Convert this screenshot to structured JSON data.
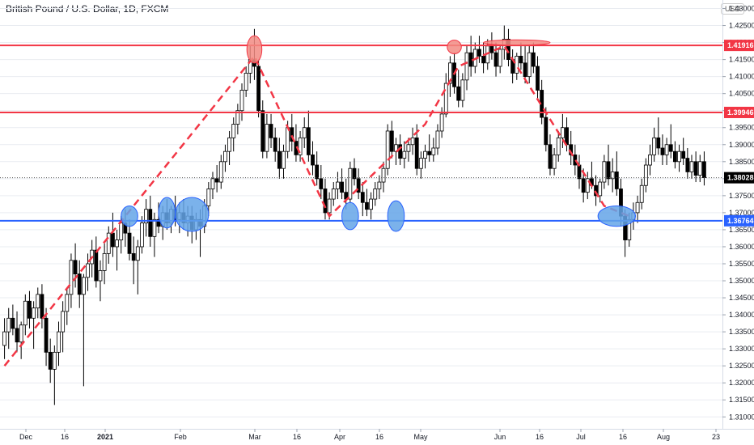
{
  "header": {
    "title": "British Pound / U.S. Dollar, 1D, FXCM",
    "currency": "USD"
  },
  "colors": {
    "up": "#ffffff",
    "down": "#000000",
    "candle_outline": "#000000",
    "resistance": "#f23645",
    "support": "#2962ff",
    "dashed_path": "#f23645",
    "highlight_red_fill": "#f28b82",
    "highlight_blue_fill": "#64a5e8",
    "grid": "#e9ecf1",
    "price_tag_dark": "#000000"
  },
  "chart_data": {
    "type": "candlestick",
    "title": "British Pound / U.S. Dollar, 1D, FXCM",
    "ylim": [
      1.3065,
      1.4325
    ],
    "y_ticks": [
      "1.43000",
      "1.42500",
      "1.42000",
      "1.41500",
      "1.41000",
      "1.40500",
      "1.40000",
      "1.39500",
      "1.39000",
      "1.38500",
      "1.38000",
      "1.37500",
      "1.37000",
      "1.36500",
      "1.36000",
      "1.35500",
      "1.35000",
      "1.34500",
      "1.34000",
      "1.33500",
      "1.33000",
      "1.32500",
      "1.32000",
      "1.31500",
      "1.31000"
    ],
    "x_labels": [
      "Dec",
      "16",
      "2021",
      "Feb",
      "Mar",
      "16",
      "Apr",
      "16",
      "May",
      "Jun",
      "16",
      "Jul",
      "16",
      "Aug",
      "23"
    ],
    "horizontal_levels": [
      {
        "value": 1.41916,
        "label": "1.41916",
        "role": "resistance"
      },
      {
        "value": 1.39946,
        "label": "1.39946",
        "role": "resistance"
      },
      {
        "value": 1.36764,
        "label": "1.36764",
        "role": "support"
      }
    ],
    "current_price": {
      "value": 1.38028,
      "label": "1.38028"
    },
    "candles": [
      {
        "o": 1.331,
        "h": 1.339,
        "l": 1.327,
        "c": 1.335
      },
      {
        "o": 1.335,
        "h": 1.342,
        "l": 1.33,
        "c": 1.339
      },
      {
        "o": 1.339,
        "h": 1.343,
        "l": 1.334,
        "c": 1.336
      },
      {
        "o": 1.336,
        "h": 1.341,
        "l": 1.329,
        "c": 1.332
      },
      {
        "o": 1.332,
        "h": 1.338,
        "l": 1.327,
        "c": 1.337
      },
      {
        "o": 1.337,
        "h": 1.346,
        "l": 1.334,
        "c": 1.344
      },
      {
        "o": 1.344,
        "h": 1.347,
        "l": 1.336,
        "c": 1.339
      },
      {
        "o": 1.339,
        "h": 1.344,
        "l": 1.33,
        "c": 1.342
      },
      {
        "o": 1.342,
        "h": 1.348,
        "l": 1.339,
        "c": 1.346
      },
      {
        "o": 1.346,
        "h": 1.349,
        "l": 1.336,
        "c": 1.339
      },
      {
        "o": 1.339,
        "h": 1.342,
        "l": 1.325,
        "c": 1.329
      },
      {
        "o": 1.329,
        "h": 1.333,
        "l": 1.32,
        "c": 1.324
      },
      {
        "o": 1.324,
        "h": 1.331,
        "l": 1.3135,
        "c": 1.329
      },
      {
        "o": 1.329,
        "h": 1.338,
        "l": 1.325,
        "c": 1.335
      },
      {
        "o": 1.335,
        "h": 1.344,
        "l": 1.329,
        "c": 1.341
      },
      {
        "o": 1.341,
        "h": 1.348,
        "l": 1.337,
        "c": 1.346
      },
      {
        "o": 1.346,
        "h": 1.358,
        "l": 1.342,
        "c": 1.356
      },
      {
        "o": 1.356,
        "h": 1.361,
        "l": 1.348,
        "c": 1.352
      },
      {
        "o": 1.352,
        "h": 1.356,
        "l": 1.342,
        "c": 1.346
      },
      {
        "o": 1.346,
        "h": 1.352,
        "l": 1.319,
        "c": 1.351
      },
      {
        "o": 1.351,
        "h": 1.358,
        "l": 1.347,
        "c": 1.355
      },
      {
        "o": 1.355,
        "h": 1.362,
        "l": 1.351,
        "c": 1.359
      },
      {
        "o": 1.359,
        "h": 1.363,
        "l": 1.348,
        "c": 1.35
      },
      {
        "o": 1.35,
        "h": 1.356,
        "l": 1.344,
        "c": 1.353
      },
      {
        "o": 1.353,
        "h": 1.361,
        "l": 1.349,
        "c": 1.358
      },
      {
        "o": 1.358,
        "h": 1.366,
        "l": 1.355,
        "c": 1.364
      },
      {
        "o": 1.364,
        "h": 1.37,
        "l": 1.357,
        "c": 1.36
      },
      {
        "o": 1.36,
        "h": 1.365,
        "l": 1.353,
        "c": 1.362
      },
      {
        "o": 1.362,
        "h": 1.369,
        "l": 1.358,
        "c": 1.367
      },
      {
        "o": 1.367,
        "h": 1.371,
        "l": 1.36,
        "c": 1.364
      },
      {
        "o": 1.364,
        "h": 1.368,
        "l": 1.356,
        "c": 1.358
      },
      {
        "o": 1.358,
        "h": 1.363,
        "l": 1.349,
        "c": 1.356
      },
      {
        "o": 1.356,
        "h": 1.362,
        "l": 1.346,
        "c": 1.36
      },
      {
        "o": 1.36,
        "h": 1.369,
        "l": 1.358,
        "c": 1.367
      },
      {
        "o": 1.367,
        "h": 1.374,
        "l": 1.363,
        "c": 1.371
      },
      {
        "o": 1.371,
        "h": 1.375,
        "l": 1.36,
        "c": 1.363
      },
      {
        "o": 1.363,
        "h": 1.37,
        "l": 1.357,
        "c": 1.368
      },
      {
        "o": 1.368,
        "h": 1.373,
        "l": 1.364,
        "c": 1.366
      },
      {
        "o": 1.366,
        "h": 1.372,
        "l": 1.362,
        "c": 1.37
      },
      {
        "o": 1.37,
        "h": 1.374,
        "l": 1.365,
        "c": 1.367
      },
      {
        "o": 1.367,
        "h": 1.372,
        "l": 1.364,
        "c": 1.371
      },
      {
        "o": 1.371,
        "h": 1.375,
        "l": 1.366,
        "c": 1.368
      },
      {
        "o": 1.368,
        "h": 1.373,
        "l": 1.364,
        "c": 1.37
      },
      {
        "o": 1.37,
        "h": 1.374,
        "l": 1.365,
        "c": 1.367
      },
      {
        "o": 1.367,
        "h": 1.372,
        "l": 1.363,
        "c": 1.369
      },
      {
        "o": 1.369,
        "h": 1.372,
        "l": 1.361,
        "c": 1.365
      },
      {
        "o": 1.365,
        "h": 1.37,
        "l": 1.362,
        "c": 1.368
      },
      {
        "o": 1.368,
        "h": 1.371,
        "l": 1.357,
        "c": 1.366
      },
      {
        "o": 1.366,
        "h": 1.374,
        "l": 1.364,
        "c": 1.372
      },
      {
        "o": 1.372,
        "h": 1.379,
        "l": 1.369,
        "c": 1.377
      },
      {
        "o": 1.377,
        "h": 1.382,
        "l": 1.374,
        "c": 1.38
      },
      {
        "o": 1.38,
        "h": 1.384,
        "l": 1.376,
        "c": 1.379
      },
      {
        "o": 1.379,
        "h": 1.387,
        "l": 1.377,
        "c": 1.385
      },
      {
        "o": 1.385,
        "h": 1.39,
        "l": 1.382,
        "c": 1.388
      },
      {
        "o": 1.388,
        "h": 1.394,
        "l": 1.384,
        "c": 1.392
      },
      {
        "o": 1.392,
        "h": 1.398,
        "l": 1.388,
        "c": 1.396
      },
      {
        "o": 1.396,
        "h": 1.402,
        "l": 1.393,
        "c": 1.4
      },
      {
        "o": 1.4,
        "h": 1.408,
        "l": 1.397,
        "c": 1.406
      },
      {
        "o": 1.406,
        "h": 1.413,
        "l": 1.404,
        "c": 1.411
      },
      {
        "o": 1.411,
        "h": 1.419,
        "l": 1.408,
        "c": 1.415
      },
      {
        "o": 1.415,
        "h": 1.424,
        "l": 1.409,
        "c": 1.413
      },
      {
        "o": 1.413,
        "h": 1.415,
        "l": 1.398,
        "c": 1.4
      },
      {
        "o": 1.4,
        "h": 1.403,
        "l": 1.386,
        "c": 1.388
      },
      {
        "o": 1.388,
        "h": 1.399,
        "l": 1.386,
        "c": 1.396
      },
      {
        "o": 1.396,
        "h": 1.399,
        "l": 1.389,
        "c": 1.392
      },
      {
        "o": 1.392,
        "h": 1.395,
        "l": 1.385,
        "c": 1.388
      },
      {
        "o": 1.388,
        "h": 1.392,
        "l": 1.38,
        "c": 1.383
      },
      {
        "o": 1.383,
        "h": 1.39,
        "l": 1.38,
        "c": 1.388
      },
      {
        "o": 1.388,
        "h": 1.397,
        "l": 1.386,
        "c": 1.395
      },
      {
        "o": 1.395,
        "h": 1.399,
        "l": 1.388,
        "c": 1.391
      },
      {
        "o": 1.391,
        "h": 1.396,
        "l": 1.385,
        "c": 1.387
      },
      {
        "o": 1.387,
        "h": 1.394,
        "l": 1.385,
        "c": 1.392
      },
      {
        "o": 1.392,
        "h": 1.398,
        "l": 1.389,
        "c": 1.395
      },
      {
        "o": 1.395,
        "h": 1.4,
        "l": 1.385,
        "c": 1.387
      },
      {
        "o": 1.387,
        "h": 1.391,
        "l": 1.381,
        "c": 1.384
      },
      {
        "o": 1.384,
        "h": 1.388,
        "l": 1.378,
        "c": 1.38
      },
      {
        "o": 1.38,
        "h": 1.384,
        "l": 1.374,
        "c": 1.377
      },
      {
        "o": 1.377,
        "h": 1.38,
        "l": 1.368,
        "c": 1.37
      },
      {
        "o": 1.37,
        "h": 1.376,
        "l": 1.368,
        "c": 1.374
      },
      {
        "o": 1.374,
        "h": 1.379,
        "l": 1.372,
        "c": 1.377
      },
      {
        "o": 1.377,
        "h": 1.382,
        "l": 1.374,
        "c": 1.379
      },
      {
        "o": 1.379,
        "h": 1.383,
        "l": 1.374,
        "c": 1.376
      },
      {
        "o": 1.376,
        "h": 1.38,
        "l": 1.371,
        "c": 1.374
      },
      {
        "o": 1.374,
        "h": 1.385,
        "l": 1.373,
        "c": 1.383
      },
      {
        "o": 1.383,
        "h": 1.386,
        "l": 1.378,
        "c": 1.38
      },
      {
        "o": 1.38,
        "h": 1.383,
        "l": 1.374,
        "c": 1.376
      },
      {
        "o": 1.376,
        "h": 1.379,
        "l": 1.369,
        "c": 1.373
      },
      {
        "o": 1.373,
        "h": 1.377,
        "l": 1.369,
        "c": 1.371
      },
      {
        "o": 1.371,
        "h": 1.376,
        "l": 1.368,
        "c": 1.374
      },
      {
        "o": 1.374,
        "h": 1.379,
        "l": 1.372,
        "c": 1.377
      },
      {
        "o": 1.377,
        "h": 1.381,
        "l": 1.374,
        "c": 1.379
      },
      {
        "o": 1.379,
        "h": 1.385,
        "l": 1.376,
        "c": 1.383
      },
      {
        "o": 1.383,
        "h": 1.396,
        "l": 1.381,
        "c": 1.394
      },
      {
        "o": 1.394,
        "h": 1.397,
        "l": 1.386,
        "c": 1.388
      },
      {
        "o": 1.388,
        "h": 1.392,
        "l": 1.384,
        "c": 1.39
      },
      {
        "o": 1.39,
        "h": 1.393,
        "l": 1.384,
        "c": 1.386
      },
      {
        "o": 1.386,
        "h": 1.391,
        "l": 1.383,
        "c": 1.388
      },
      {
        "o": 1.388,
        "h": 1.392,
        "l": 1.385,
        "c": 1.39
      },
      {
        "o": 1.39,
        "h": 1.395,
        "l": 1.387,
        "c": 1.392
      },
      {
        "o": 1.392,
        "h": 1.396,
        "l": 1.381,
        "c": 1.383
      },
      {
        "o": 1.383,
        "h": 1.388,
        "l": 1.38,
        "c": 1.386
      },
      {
        "o": 1.386,
        "h": 1.39,
        "l": 1.383,
        "c": 1.388
      },
      {
        "o": 1.388,
        "h": 1.393,
        "l": 1.385,
        "c": 1.387
      },
      {
        "o": 1.387,
        "h": 1.392,
        "l": 1.385,
        "c": 1.389
      },
      {
        "o": 1.389,
        "h": 1.396,
        "l": 1.387,
        "c": 1.394
      },
      {
        "o": 1.394,
        "h": 1.401,
        "l": 1.392,
        "c": 1.399
      },
      {
        "o": 1.399,
        "h": 1.411,
        "l": 1.398,
        "c": 1.408
      },
      {
        "o": 1.408,
        "h": 1.416,
        "l": 1.404,
        "c": 1.414
      },
      {
        "o": 1.414,
        "h": 1.417,
        "l": 1.405,
        "c": 1.407
      },
      {
        "o": 1.407,
        "h": 1.412,
        "l": 1.401,
        "c": 1.403
      },
      {
        "o": 1.403,
        "h": 1.411,
        "l": 1.401,
        "c": 1.409
      },
      {
        "o": 1.409,
        "h": 1.419,
        "l": 1.406,
        "c": 1.417
      },
      {
        "o": 1.417,
        "h": 1.422,
        "l": 1.41,
        "c": 1.413
      },
      {
        "o": 1.413,
        "h": 1.42,
        "l": 1.411,
        "c": 1.418
      },
      {
        "o": 1.418,
        "h": 1.422,
        "l": 1.414,
        "c": 1.416
      },
      {
        "o": 1.416,
        "h": 1.42,
        "l": 1.411,
        "c": 1.414
      },
      {
        "o": 1.414,
        "h": 1.421,
        "l": 1.412,
        "c": 1.419
      },
      {
        "o": 1.419,
        "h": 1.423,
        "l": 1.415,
        "c": 1.417
      },
      {
        "o": 1.417,
        "h": 1.42,
        "l": 1.41,
        "c": 1.413
      },
      {
        "o": 1.413,
        "h": 1.419,
        "l": 1.411,
        "c": 1.418
      },
      {
        "o": 1.418,
        "h": 1.425,
        "l": 1.415,
        "c": 1.421
      },
      {
        "o": 1.421,
        "h": 1.424,
        "l": 1.413,
        "c": 1.415
      },
      {
        "o": 1.415,
        "h": 1.418,
        "l": 1.408,
        "c": 1.411
      },
      {
        "o": 1.411,
        "h": 1.417,
        "l": 1.409,
        "c": 1.416
      },
      {
        "o": 1.416,
        "h": 1.42,
        "l": 1.412,
        "c": 1.414
      },
      {
        "o": 1.414,
        "h": 1.419,
        "l": 1.408,
        "c": 1.41
      },
      {
        "o": 1.41,
        "h": 1.419,
        "l": 1.408,
        "c": 1.417
      },
      {
        "o": 1.417,
        "h": 1.42,
        "l": 1.411,
        "c": 1.413
      },
      {
        "o": 1.413,
        "h": 1.416,
        "l": 1.403,
        "c": 1.406
      },
      {
        "o": 1.406,
        "h": 1.409,
        "l": 1.396,
        "c": 1.398
      },
      {
        "o": 1.398,
        "h": 1.401,
        "l": 1.388,
        "c": 1.39
      },
      {
        "o": 1.39,
        "h": 1.393,
        "l": 1.381,
        "c": 1.383
      },
      {
        "o": 1.383,
        "h": 1.389,
        "l": 1.381,
        "c": 1.387
      },
      {
        "o": 1.387,
        "h": 1.394,
        "l": 1.385,
        "c": 1.392
      },
      {
        "o": 1.392,
        "h": 1.399,
        "l": 1.389,
        "c": 1.395
      },
      {
        "o": 1.395,
        "h": 1.398,
        "l": 1.388,
        "c": 1.39
      },
      {
        "o": 1.39,
        "h": 1.394,
        "l": 1.384,
        "c": 1.387
      },
      {
        "o": 1.387,
        "h": 1.39,
        "l": 1.381,
        "c": 1.384
      },
      {
        "o": 1.384,
        "h": 1.387,
        "l": 1.377,
        "c": 1.38
      },
      {
        "o": 1.38,
        "h": 1.383,
        "l": 1.373,
        "c": 1.376
      },
      {
        "o": 1.376,
        "h": 1.382,
        "l": 1.374,
        "c": 1.38
      },
      {
        "o": 1.38,
        "h": 1.385,
        "l": 1.377,
        "c": 1.378
      },
      {
        "o": 1.378,
        "h": 1.381,
        "l": 1.372,
        "c": 1.375
      },
      {
        "o": 1.375,
        "h": 1.38,
        "l": 1.373,
        "c": 1.379
      },
      {
        "o": 1.379,
        "h": 1.387,
        "l": 1.377,
        "c": 1.385
      },
      {
        "o": 1.385,
        "h": 1.39,
        "l": 1.378,
        "c": 1.38
      },
      {
        "o": 1.38,
        "h": 1.386,
        "l": 1.376,
        "c": 1.382
      },
      {
        "o": 1.382,
        "h": 1.388,
        "l": 1.375,
        "c": 1.377
      },
      {
        "o": 1.377,
        "h": 1.38,
        "l": 1.366,
        "c": 1.369
      },
      {
        "o": 1.369,
        "h": 1.371,
        "l": 1.357,
        "c": 1.362
      },
      {
        "o": 1.362,
        "h": 1.37,
        "l": 1.36,
        "c": 1.368
      },
      {
        "o": 1.368,
        "h": 1.373,
        "l": 1.365,
        "c": 1.37
      },
      {
        "o": 1.37,
        "h": 1.375,
        "l": 1.367,
        "c": 1.373
      },
      {
        "o": 1.373,
        "h": 1.38,
        "l": 1.371,
        "c": 1.378
      },
      {
        "o": 1.378,
        "h": 1.386,
        "l": 1.376,
        "c": 1.384
      },
      {
        "o": 1.384,
        "h": 1.39,
        "l": 1.381,
        "c": 1.387
      },
      {
        "o": 1.387,
        "h": 1.395,
        "l": 1.385,
        "c": 1.392
      },
      {
        "o": 1.392,
        "h": 1.398,
        "l": 1.387,
        "c": 1.389
      },
      {
        "o": 1.389,
        "h": 1.393,
        "l": 1.384,
        "c": 1.387
      },
      {
        "o": 1.387,
        "h": 1.392,
        "l": 1.384,
        "c": 1.39
      },
      {
        "o": 1.39,
        "h": 1.396,
        "l": 1.386,
        "c": 1.388
      },
      {
        "o": 1.388,
        "h": 1.391,
        "l": 1.383,
        "c": 1.385
      },
      {
        "o": 1.385,
        "h": 1.39,
        "l": 1.382,
        "c": 1.388
      },
      {
        "o": 1.388,
        "h": 1.392,
        "l": 1.384,
        "c": 1.386
      },
      {
        "o": 1.386,
        "h": 1.389,
        "l": 1.38,
        "c": 1.382
      },
      {
        "o": 1.382,
        "h": 1.387,
        "l": 1.38,
        "c": 1.385
      },
      {
        "o": 1.385,
        "h": 1.388,
        "l": 1.379,
        "c": 1.381
      },
      {
        "o": 1.381,
        "h": 1.387,
        "l": 1.379,
        "c": 1.385
      },
      {
        "o": 1.385,
        "h": 1.388,
        "l": 1.378,
        "c": 1.3803
      }
    ],
    "dashed_path": [
      {
        "candle": 0,
        "price": 1.325
      },
      {
        "candle": 60,
        "price": 1.416
      },
      {
        "candle": 78,
        "price": 1.369
      },
      {
        "candle": 101,
        "price": 1.396
      },
      {
        "candle": 109,
        "price": 1.413
      },
      {
        "candle": 120,
        "price": 1.419
      },
      {
        "candle": 144,
        "price": 1.372
      },
      {
        "candle": 150,
        "price": 1.369
      }
    ],
    "highlights": [
      {
        "candle": 30,
        "price": 1.369,
        "rx_candles": 2.0,
        "ry_price": 0.003,
        "color": "blue"
      },
      {
        "candle": 39,
        "price": 1.37,
        "rx_candles": 2.0,
        "ry_price": 0.0045,
        "color": "blue"
      },
      {
        "candle": 45,
        "price": 1.3695,
        "rx_candles": 4.0,
        "ry_price": 0.005,
        "color": "blue"
      },
      {
        "candle": 60,
        "price": 1.418,
        "rx_candles": 1.8,
        "ry_price": 0.004,
        "color": "red"
      },
      {
        "candle": 83,
        "price": 1.369,
        "rx_candles": 2.0,
        "ry_price": 0.004,
        "color": "blue"
      },
      {
        "candle": 94,
        "price": 1.369,
        "rx_candles": 2.0,
        "ry_price": 0.0045,
        "color": "blue"
      },
      {
        "candle": 108,
        "price": 1.4187,
        "rx_candles": 1.7,
        "ry_price": 0.002,
        "color": "red"
      },
      {
        "candle": 123,
        "price": 1.42,
        "rx_candles": 8.0,
        "ry_price": 0.0008,
        "color": "red"
      },
      {
        "candle": 147,
        "price": 1.369,
        "rx_candles": 4.5,
        "ry_price": 0.003,
        "color": "blue"
      }
    ]
  }
}
